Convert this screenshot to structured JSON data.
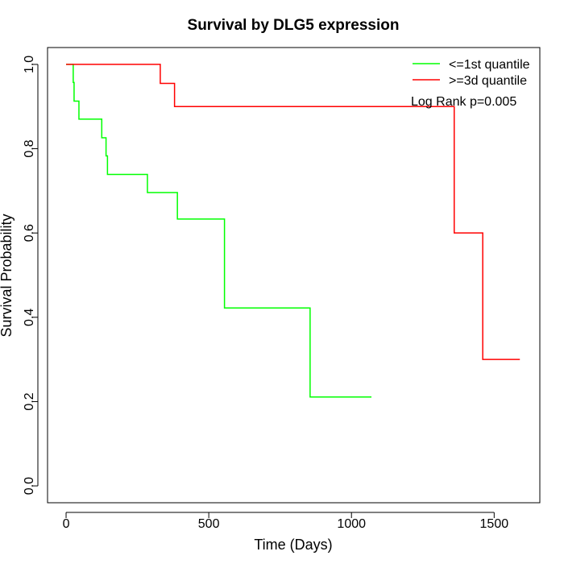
{
  "chart_data": {
    "type": "line",
    "subtype": "step",
    "title": "Survival by DLG5 expression",
    "xlabel": "Time (Days)",
    "ylabel": "Survival Probability",
    "xlim": [
      -65,
      1660
    ],
    "ylim": [
      -0.04,
      1.04
    ],
    "xticks": [
      0,
      500,
      1000,
      1500
    ],
    "xtick_labels": [
      "0",
      "500",
      "1000",
      "1500"
    ],
    "yticks": [
      0.0,
      0.2,
      0.4,
      0.6,
      0.8,
      1.0
    ],
    "ytick_labels": [
      "0.0",
      "0.2",
      "0.4",
      "0.6",
      "0.8",
      "1.0"
    ],
    "grid": false,
    "legend_position": "top-right",
    "annotation": "Log Rank p=0.005",
    "series": [
      {
        "name": "<=1st quantile",
        "color": "#00FF00",
        "x": [
          0,
          23,
          25,
          28,
          45,
          110,
          125,
          140,
          145,
          285,
          390,
          555,
          855,
          1070
        ],
        "y": [
          1.0,
          1.0,
          0.957,
          0.913,
          0.87,
          0.87,
          0.826,
          0.783,
          0.739,
          0.696,
          0.633,
          0.422,
          0.211,
          0.211
        ]
      },
      {
        "name": ">=3d quantile",
        "color": "#FF0000",
        "x": [
          0,
          330,
          380,
          1360,
          1460,
          1590
        ],
        "y": [
          1.0,
          0.955,
          0.9,
          0.6,
          0.3,
          0.3
        ]
      }
    ]
  }
}
